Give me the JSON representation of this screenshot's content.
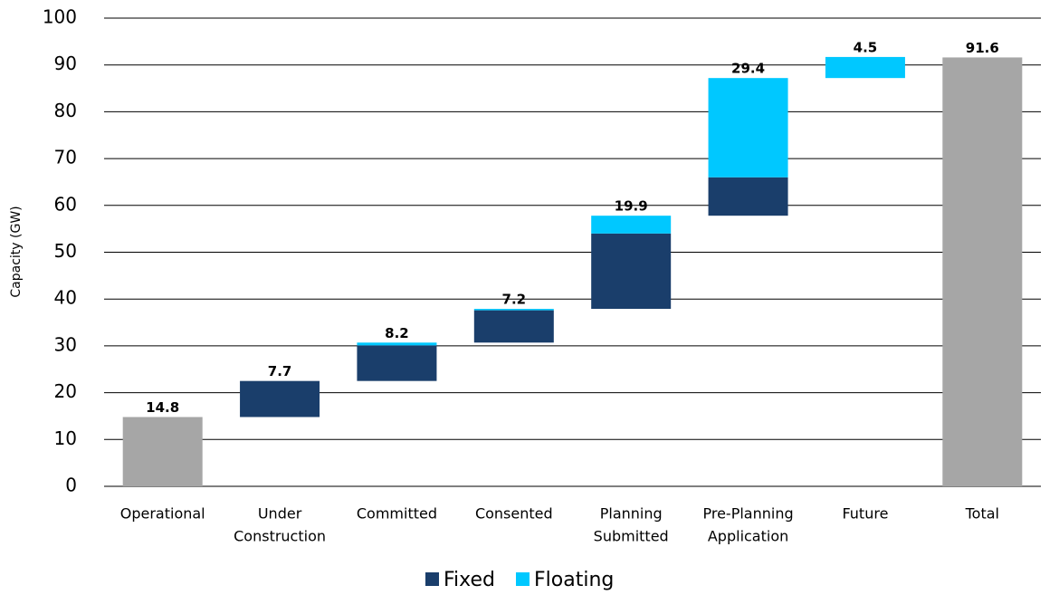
{
  "chart_data": {
    "type": "waterfall",
    "ylabel": "Capacity (GW)",
    "categories": [
      [
        "Operational"
      ],
      [
        "Under",
        "Construction"
      ],
      [
        "Committed"
      ],
      [
        "Consented"
      ],
      [
        "Planning",
        "Submitted"
      ],
      [
        "Pre-Planning",
        "Application"
      ],
      [
        "Future"
      ],
      [
        "Total"
      ]
    ],
    "values": [
      14.8,
      7.7,
      8.2,
      7.2,
      19.9,
      29.4,
      4.5,
      91.6
    ],
    "total_color": "#a6a6a6",
    "series": [
      {
        "name": "Fixed",
        "color": "#1a3e6b",
        "values": [
          null,
          7.7,
          7.6,
          6.9,
          16.1,
          8.2,
          0,
          null
        ]
      },
      {
        "name": "Floating",
        "color": "#00c8ff",
        "values": [
          null,
          0,
          0.6,
          0.3,
          3.8,
          21.2,
          4.5,
          null
        ]
      }
    ],
    "ylim": [
      0,
      100
    ],
    "yticks": [
      0,
      10,
      20,
      30,
      40,
      50,
      60,
      70,
      80,
      90,
      100
    ],
    "grid": true,
    "legend": "bottom"
  }
}
